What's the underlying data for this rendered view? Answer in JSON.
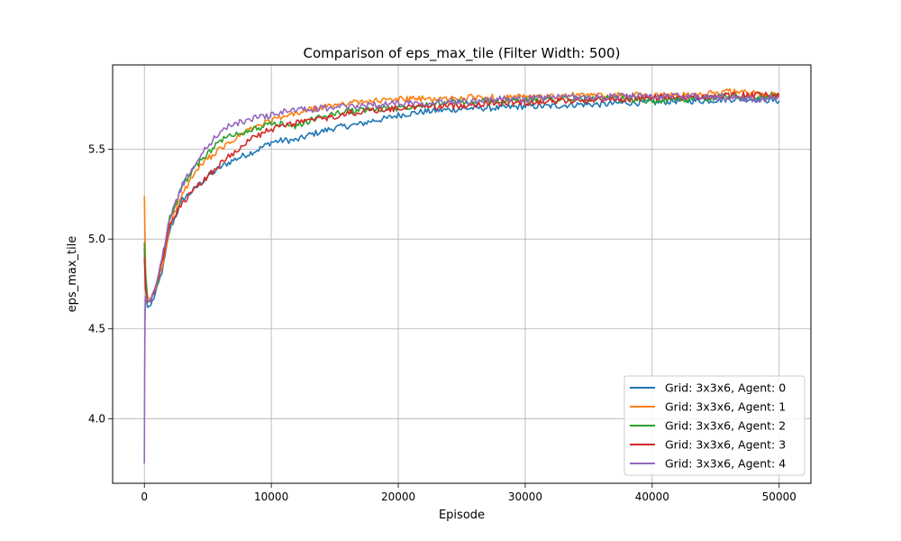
{
  "chart_data": {
    "type": "line",
    "title": "Comparison of eps_max_tile (Filter Width: 500)",
    "xlabel": "Episode",
    "ylabel": "eps_max_tile",
    "xlim": [
      -2500,
      52500
    ],
    "ylim": [
      3.64,
      5.97
    ],
    "xticks": [
      0,
      10000,
      20000,
      30000,
      40000,
      50000
    ],
    "xtick_labels": [
      "0",
      "10000",
      "20000",
      "30000",
      "40000",
      "50000"
    ],
    "yticks": [
      4.0,
      4.5,
      5.0,
      5.5
    ],
    "ytick_labels": [
      "4.0",
      "4.5",
      "5.0",
      "5.5"
    ],
    "grid": true,
    "legend_position": "lower-right",
    "series": [
      {
        "name": "Grid: 3x3x6, Agent: 0",
        "color": "#1f77b4",
        "x": [
          0,
          100,
          250,
          500,
          1000,
          1500,
          2000,
          3000,
          4000,
          5000,
          6000,
          7000,
          8000,
          9000,
          10000,
          11000,
          12000,
          13000,
          14000,
          15000,
          16000,
          17000,
          18000,
          19000,
          20000,
          22000,
          24000,
          26000,
          28000,
          30000,
          32000,
          34000,
          36000,
          38000,
          40000,
          42000,
          44000,
          46000,
          48000,
          50000
        ],
        "y": [
          4.95,
          4.72,
          4.62,
          4.63,
          4.72,
          4.85,
          5.05,
          5.22,
          5.28,
          5.35,
          5.4,
          5.44,
          5.47,
          5.5,
          5.54,
          5.55,
          5.55,
          5.58,
          5.6,
          5.62,
          5.63,
          5.64,
          5.66,
          5.67,
          5.69,
          5.71,
          5.72,
          5.73,
          5.73,
          5.74,
          5.74,
          5.75,
          5.75,
          5.76,
          5.76,
          5.77,
          5.77,
          5.78,
          5.78,
          5.77
        ]
      },
      {
        "name": "Grid: 3x3x6, Agent: 1",
        "color": "#ff7f0e",
        "x": [
          0,
          100,
          250,
          500,
          1000,
          1500,
          2000,
          3000,
          4000,
          5000,
          6000,
          7000,
          8000,
          9000,
          10000,
          11000,
          12000,
          13000,
          14000,
          15000,
          16000,
          17000,
          18000,
          19000,
          20000,
          22000,
          24000,
          26000,
          28000,
          30000,
          32000,
          34000,
          36000,
          38000,
          40000,
          42000,
          44000,
          46000,
          48000,
          50000
        ],
        "y": [
          5.24,
          4.8,
          4.68,
          4.66,
          4.74,
          4.88,
          5.08,
          5.25,
          5.37,
          5.45,
          5.5,
          5.55,
          5.6,
          5.63,
          5.66,
          5.68,
          5.7,
          5.72,
          5.73,
          5.75,
          5.76,
          5.76,
          5.77,
          5.77,
          5.78,
          5.78,
          5.78,
          5.79,
          5.79,
          5.79,
          5.79,
          5.8,
          5.8,
          5.8,
          5.8,
          5.8,
          5.81,
          5.82,
          5.81,
          5.8
        ]
      },
      {
        "name": "Grid: 3x3x6, Agent: 2",
        "color": "#2ca02c",
        "x": [
          0,
          100,
          250,
          500,
          1000,
          1500,
          2000,
          3000,
          4000,
          5000,
          6000,
          7000,
          8000,
          9000,
          10000,
          11000,
          12000,
          13000,
          14000,
          15000,
          16000,
          17000,
          18000,
          19000,
          20000,
          22000,
          24000,
          26000,
          28000,
          30000,
          32000,
          34000,
          36000,
          38000,
          40000,
          42000,
          44000,
          46000,
          48000,
          50000
        ],
        "y": [
          4.98,
          4.8,
          4.66,
          4.65,
          4.75,
          4.92,
          5.12,
          5.3,
          5.4,
          5.48,
          5.55,
          5.58,
          5.6,
          5.62,
          5.64,
          5.64,
          5.63,
          5.66,
          5.68,
          5.7,
          5.71,
          5.72,
          5.72,
          5.73,
          5.73,
          5.75,
          5.76,
          5.76,
          5.77,
          5.77,
          5.78,
          5.78,
          5.78,
          5.78,
          5.77,
          5.78,
          5.78,
          5.8,
          5.79,
          5.8
        ]
      },
      {
        "name": "Grid: 3x3x6, Agent: 3",
        "color": "#d62728",
        "x": [
          0,
          100,
          250,
          500,
          1000,
          1500,
          2000,
          3000,
          4000,
          5000,
          6000,
          7000,
          8000,
          9000,
          10000,
          11000,
          12000,
          13000,
          14000,
          15000,
          16000,
          17000,
          18000,
          19000,
          20000,
          22000,
          24000,
          26000,
          28000,
          30000,
          32000,
          34000,
          36000,
          38000,
          40000,
          42000,
          44000,
          46000,
          48000,
          50000
        ],
        "y": [
          4.9,
          4.72,
          4.65,
          4.66,
          4.75,
          4.9,
          5.08,
          5.2,
          5.28,
          5.35,
          5.42,
          5.48,
          5.54,
          5.58,
          5.61,
          5.63,
          5.65,
          5.66,
          5.67,
          5.68,
          5.7,
          5.71,
          5.72,
          5.72,
          5.73,
          5.74,
          5.74,
          5.75,
          5.76,
          5.76,
          5.77,
          5.77,
          5.78,
          5.78,
          5.79,
          5.79,
          5.79,
          5.8,
          5.8,
          5.8
        ]
      },
      {
        "name": "Grid: 3x3x6, Agent: 4",
        "color": "#9467bd",
        "x": [
          0,
          20,
          50,
          100,
          250,
          500,
          1000,
          1500,
          2000,
          3000,
          4000,
          5000,
          6000,
          7000,
          8000,
          9000,
          10000,
          11000,
          12000,
          13000,
          14000,
          15000,
          16000,
          17000,
          18000,
          19000,
          20000,
          22000,
          24000,
          26000,
          28000,
          30000,
          32000,
          34000,
          36000,
          38000,
          40000,
          42000,
          44000,
          46000,
          48000,
          50000
        ],
        "y": [
          3.75,
          4.2,
          4.55,
          4.68,
          4.66,
          4.65,
          4.76,
          4.93,
          5.12,
          5.3,
          5.42,
          5.52,
          5.6,
          5.64,
          5.66,
          5.68,
          5.69,
          5.71,
          5.72,
          5.72,
          5.73,
          5.73,
          5.74,
          5.74,
          5.75,
          5.75,
          5.76,
          5.76,
          5.77,
          5.77,
          5.78,
          5.78,
          5.79,
          5.79,
          5.79,
          5.8,
          5.79,
          5.8,
          5.79,
          5.79,
          5.78,
          5.79
        ]
      }
    ]
  }
}
